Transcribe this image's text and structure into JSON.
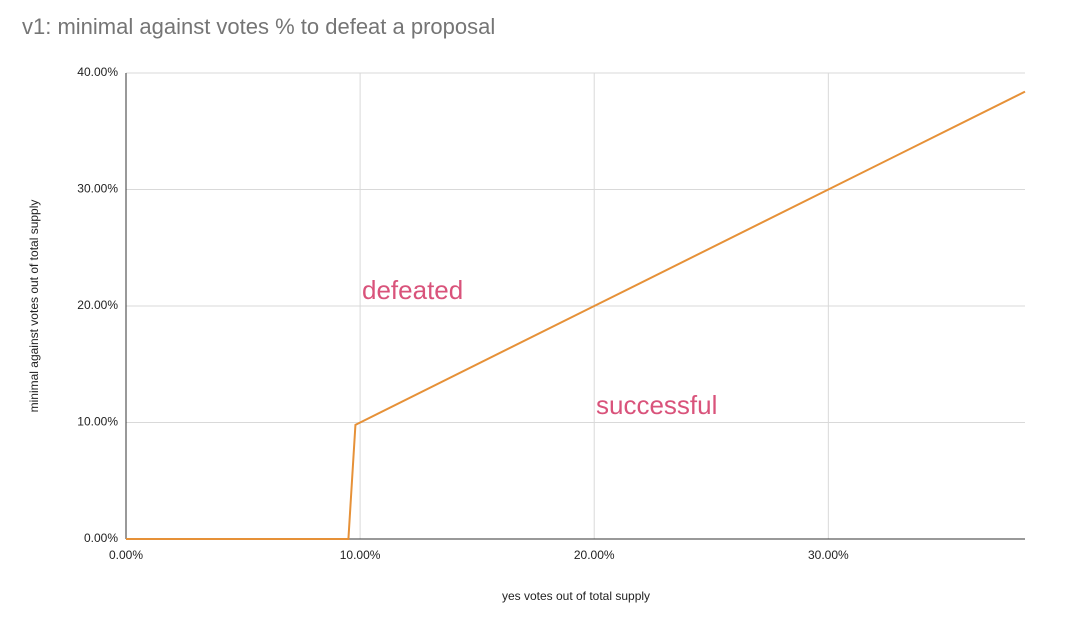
{
  "chart_data": {
    "type": "line",
    "title": "v1: minimal against votes % to defeat a proposal",
    "x_label": "yes votes out of total supply",
    "y_label": "minimal against votes out of total supply",
    "x": [
      0,
      9.5,
      9.8,
      20,
      30,
      38.4
    ],
    "series": [
      {
        "name": "minimal against votes",
        "color": "#e69138",
        "values": [
          0,
          0,
          9.8,
          20,
          30,
          38.4
        ]
      }
    ],
    "xlim": [
      0,
      38.4
    ],
    "ylim": [
      0,
      40
    ],
    "xticks": [
      {
        "value": 0,
        "label": "0.00%"
      },
      {
        "value": 10,
        "label": "10.00%"
      },
      {
        "value": 20,
        "label": "20.00%"
      },
      {
        "value": 30,
        "label": "30.00%"
      }
    ],
    "yticks": [
      {
        "value": 0,
        "label": "0.00%"
      },
      {
        "value": 10,
        "label": "10.00%"
      },
      {
        "value": 20,
        "label": "20.00%"
      },
      {
        "value": 30,
        "label": "30.00%"
      },
      {
        "value": 40,
        "label": "40.00%"
      }
    ],
    "grid": true,
    "annotations": [
      "defeated",
      "successful"
    ],
    "annotation_color": "#d9537b"
  }
}
